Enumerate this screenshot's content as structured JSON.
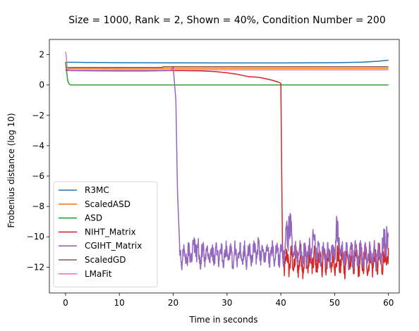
{
  "chart_data": {
    "type": "line",
    "title": "Size = 1000, Rank = 2, Shown = 40%, Condition Number = 200",
    "xlabel": "Time in seconds",
    "ylabel": "Frobenius distance (log 10)",
    "xlim": [
      -3,
      62
    ],
    "ylim": [
      -13.7,
      3.0
    ],
    "xticks": [
      0,
      10,
      20,
      30,
      40,
      50,
      60
    ],
    "yticks": [
      2,
      0,
      -2,
      -4,
      -6,
      -8,
      -10,
      -12
    ],
    "ytick_labels": [
      "2",
      "0",
      "−2",
      "−4",
      "−6",
      "−8",
      "−10",
      "−12"
    ],
    "legend_position": "lower-left",
    "series": [
      {
        "name": "R3MC",
        "color": "#1f77b4",
        "x": [
          0,
          2,
          10,
          20,
          30,
          40,
          50,
          55,
          58,
          60
        ],
        "y": [
          1.5,
          1.49,
          1.47,
          1.46,
          1.45,
          1.45,
          1.47,
          1.5,
          1.56,
          1.63
        ]
      },
      {
        "name": "ScaledASD",
        "color": "#ff7f0e",
        "x": [
          0,
          0.5,
          60
        ],
        "y": [
          1.2,
          1.1,
          1.1
        ]
      },
      {
        "name": "ASD",
        "color": "#2ca02c",
        "x": [
          0,
          0.2,
          0.4,
          0.6,
          0.8,
          1.0,
          1.5,
          60
        ],
        "y": [
          1.5,
          0.9,
          0.3,
          0.1,
          0.03,
          0.0,
          0.0,
          0.0
        ]
      },
      {
        "name": "NIHT_Matrix",
        "color": "#d62728",
        "x": [
          0,
          5,
          10,
          15,
          20,
          25,
          28,
          30,
          32,
          34,
          36,
          38,
          39.5,
          40.0,
          40.3
        ],
        "y": [
          1.0,
          0.98,
          0.97,
          0.96,
          0.95,
          0.93,
          0.88,
          0.8,
          0.7,
          0.55,
          0.5,
          0.35,
          0.2,
          0.1,
          -10.5
        ],
        "noise": {
          "from": 40.3,
          "to": 60,
          "center": -11.6,
          "amplitude": 1.1
        }
      },
      {
        "name": "CGIHT_Matrix",
        "color": "#9467bd",
        "x": [
          0,
          5,
          10,
          15,
          19.5,
          20.0,
          20.5,
          20.8,
          21.2
        ],
        "y": [
          0.95,
          0.93,
          0.92,
          0.92,
          0.95,
          1.2,
          -1.0,
          -7.0,
          -10.6
        ],
        "noise": {
          "from": 21.2,
          "to": 60,
          "center": -11.2,
          "amplitude": 0.9
        }
      },
      {
        "name": "ScaledGD",
        "color": "#8c564b",
        "x": [
          0,
          18,
          18.1,
          60
        ],
        "y": [
          1.15,
          1.15,
          1.2,
          1.2
        ]
      },
      {
        "name": "LMaFit",
        "color": "#e377c2",
        "x": [
          0,
          0.1,
          0.3,
          0.6,
          1.0,
          60
        ],
        "y": [
          2.2,
          2.0,
          1.2,
          0.95,
          1.0,
          1.0
        ]
      }
    ]
  }
}
